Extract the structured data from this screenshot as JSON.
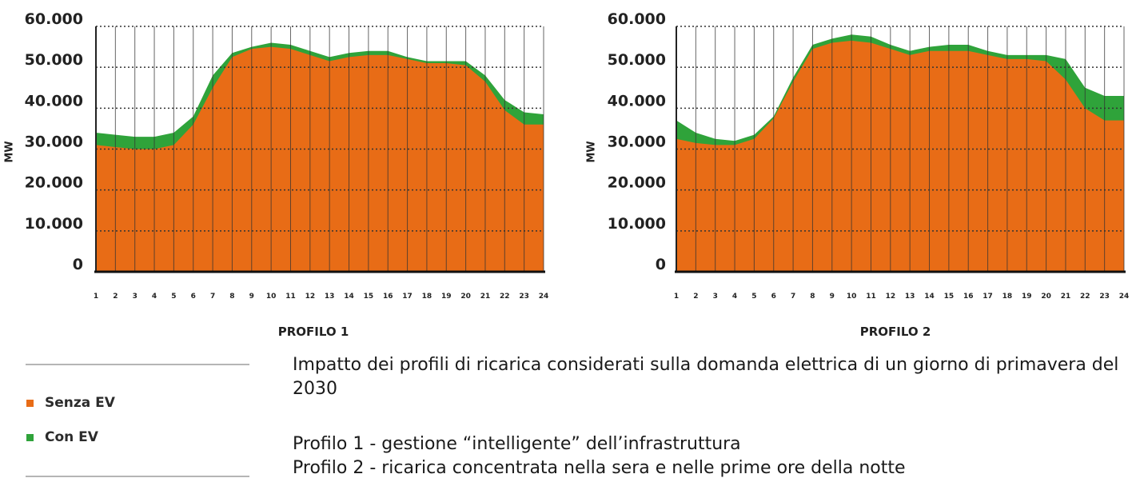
{
  "chart_data": [
    {
      "type": "area",
      "title": "PROFILO 1",
      "ylabel": "MW",
      "xlabel": "",
      "ylim": [
        0,
        60000
      ],
      "yticks": [
        "0",
        "10.000",
        "20.000",
        "30.000",
        "40.000",
        "50.000",
        "60.000"
      ],
      "x": [
        1,
        2,
        3,
        4,
        5,
        6,
        7,
        8,
        9,
        10,
        11,
        12,
        13,
        14,
        15,
        16,
        17,
        18,
        19,
        20,
        21,
        22,
        23,
        24
      ],
      "series": [
        {
          "name": "Senza EV",
          "values": [
            31000,
            30500,
            30000,
            30000,
            31000,
            36000,
            45000,
            52500,
            54500,
            55000,
            54500,
            53000,
            51500,
            52500,
            53000,
            53000,
            52000,
            51000,
            51000,
            50500,
            46500,
            39500,
            36000,
            36000
          ]
        },
        {
          "name": "Con EV",
          "values": [
            34000,
            33500,
            33000,
            33000,
            34000,
            38000,
            48000,
            53500,
            55000,
            56000,
            55500,
            54000,
            52500,
            53500,
            54000,
            54000,
            52500,
            51500,
            51500,
            51500,
            48000,
            42000,
            39000,
            38500
          ]
        }
      ],
      "grid": "vertical"
    },
    {
      "type": "area",
      "title": "PROFILO 2",
      "ylabel": "MW",
      "xlabel": "",
      "ylim": [
        0,
        60000
      ],
      "yticks": [
        "0",
        "10.000",
        "20.000",
        "30.000",
        "40.000",
        "50.000",
        "60.000"
      ],
      "x": [
        1,
        2,
        3,
        4,
        5,
        6,
        7,
        8,
        9,
        10,
        11,
        12,
        13,
        14,
        15,
        16,
        17,
        18,
        19,
        20,
        21,
        22,
        23,
        24
      ],
      "series": [
        {
          "name": "Senza EV",
          "values": [
            32500,
            31500,
            31000,
            31000,
            32500,
            37500,
            46500,
            54500,
            56000,
            56500,
            56000,
            54500,
            53000,
            54000,
            54000,
            54000,
            53000,
            52000,
            52000,
            51500,
            47000,
            40000,
            37000,
            37000
          ]
        },
        {
          "name": "Con EV",
          "values": [
            37000,
            34000,
            32500,
            32000,
            33500,
            38000,
            47500,
            55500,
            57000,
            58000,
            57500,
            55500,
            54000,
            55000,
            55500,
            55500,
            54000,
            53000,
            53000,
            53000,
            52000,
            45000,
            43000,
            43000
          ]
        }
      ],
      "grid": "vertical"
    }
  ],
  "colors": {
    "senza_ev": "#e86c16",
    "con_ev": "#2fa33a",
    "grid": "#333333",
    "legend_line": "#b5b5b5"
  },
  "legend": {
    "items": [
      {
        "label": "Senza EV",
        "color": "#e86c16"
      },
      {
        "label": "Con EV",
        "color": "#2fa33a"
      }
    ]
  },
  "caption": {
    "line1": "Impatto dei profili di ricarica considerati sulla domanda elettrica di un giorno di primavera del 2030",
    "line2": "Profilo 1 - gestione “intelligente” dell’infrastruttura",
    "line3": "Profilo 2 - ricarica concentrata nella sera e nelle prime ore della notte"
  }
}
